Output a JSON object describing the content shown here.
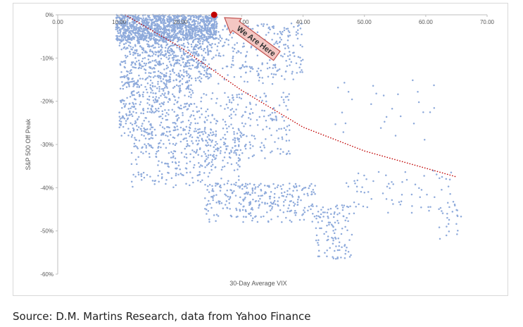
{
  "source_note": "Source: D.M. Martins Research, data from Yahoo Finance",
  "colors": {
    "points": "#8eaadb",
    "trend": "#c00000",
    "marker": "#c00000",
    "callout_fill": "#f4c7c3",
    "callout_stroke": "#c0504d"
  },
  "chart_data": {
    "type": "scatter",
    "title": "",
    "xlabel": "30-Day Average VIX",
    "ylabel": "S&P 500 Off Peak",
    "xlim": [
      0,
      70
    ],
    "ylim": [
      -60,
      0
    ],
    "x_ticks": [
      "0.00",
      "10.00",
      "20.00",
      "30.00",
      "40.00",
      "50.00",
      "60.00",
      "70.00"
    ],
    "y_ticks": [
      "0%",
      "-10%",
      "-20%",
      "-30%",
      "-40%",
      "-50%",
      "-60%"
    ],
    "x_axis_position": "top",
    "grid": false,
    "annotation": {
      "label": "We Are Here",
      "point": {
        "x": 25.5,
        "y": 0
      }
    },
    "trendline": {
      "style": "dotted",
      "points": [
        [
          11,
          0
        ],
        [
          20,
          -7.5
        ],
        [
          30,
          -17.5
        ],
        [
          40,
          -26
        ],
        [
          50,
          -31.5
        ],
        [
          60,
          -35.5
        ],
        [
          65,
          -37.5
        ]
      ]
    },
    "clusters": [
      {
        "x": [
          9.5,
          26
        ],
        "y": [
          -6,
          0
        ],
        "n": 1100
      },
      {
        "x": [
          10,
          25
        ],
        "y": [
          -15,
          -3
        ],
        "n": 550
      },
      {
        "x": [
          15,
          40
        ],
        "y": [
          -16,
          -2
        ],
        "n": 420
      },
      {
        "x": [
          10,
          22
        ],
        "y": [
          -28,
          -14
        ],
        "n": 380
      },
      {
        "x": [
          12,
          30
        ],
        "y": [
          -40,
          -26
        ],
        "n": 320
      },
      {
        "x": [
          22,
          38
        ],
        "y": [
          -34,
          -18
        ],
        "n": 240
      },
      {
        "x": [
          24,
          42
        ],
        "y": [
          -48,
          -39
        ],
        "n": 280
      },
      {
        "x": [
          42,
          48
        ],
        "y": [
          -57,
          -44
        ],
        "n": 110
      },
      {
        "x": [
          47,
          65
        ],
        "y": [
          -46,
          -36
        ],
        "n": 70
      },
      {
        "x": [
          45,
          62
        ],
        "y": [
          -30,
          -15
        ],
        "n": 28
      },
      {
        "x": [
          62,
          66
        ],
        "y": [
          -52,
          -44
        ],
        "n": 22
      }
    ]
  }
}
